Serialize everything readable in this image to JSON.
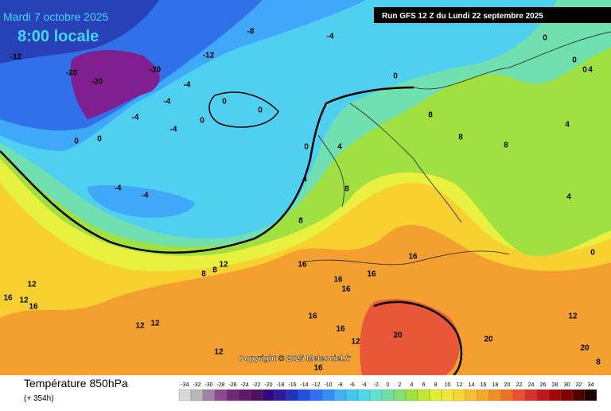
{
  "header": {
    "date": "Mardi 7 octobre 2025",
    "time": "8:00 locale",
    "run": "Run GFS 12 Z du Lundi 22 septembre 2025"
  },
  "footer": {
    "parameter": "Température 850hPa",
    "lead": "(+ 354h)",
    "copyright": "Copyright © 2025 Meteociel.fr"
  },
  "contour_labels": [
    -12,
    -20,
    -20,
    -20,
    -12,
    -8,
    -4,
    -4,
    -4,
    -4,
    -4,
    -4,
    -4,
    0,
    0,
    0,
    0,
    0,
    0,
    0,
    0,
    0,
    0,
    0,
    4,
    4,
    4,
    4,
    4,
    8,
    8,
    8,
    8,
    8,
    8,
    8,
    12,
    16,
    16,
    16,
    16,
    16,
    16,
    16,
    12,
    12,
    16,
    16,
    12,
    12,
    12,
    12,
    20,
    20,
    16,
    20,
    8,
    12
  ],
  "scale": {
    "values": [
      -34,
      -32,
      -30,
      -28,
      -26,
      -24,
      -22,
      -20,
      -18,
      -16,
      -14,
      -12,
      -10,
      -8,
      -6,
      -4,
      -2,
      0,
      2,
      4,
      6,
      8,
      10,
      12,
      14,
      16,
      18,
      20,
      22,
      24,
      26,
      28,
      30,
      32,
      34
    ],
    "colors": [
      "#d8d8d8",
      "#b8b8b8",
      "#a080a8",
      "#904890",
      "#702878",
      "#601868",
      "#501060",
      "#300880",
      "#3018a0",
      "#2030c0",
      "#2050e0",
      "#3070f0",
      "#3090f8",
      "#40b0f8",
      "#40c8f0",
      "#50d8e8",
      "#60e0d0",
      "#70e0a8",
      "#80e070",
      "#a0e040",
      "#c0e830",
      "#e0f030",
      "#f0e838",
      "#f8d830",
      "#f8c030",
      "#f8a828",
      "#f09020",
      "#f07028",
      "#e85030",
      "#d83028",
      "#c01818",
      "#a00808",
      "#800000",
      "#500000",
      "#200000"
    ]
  }
}
